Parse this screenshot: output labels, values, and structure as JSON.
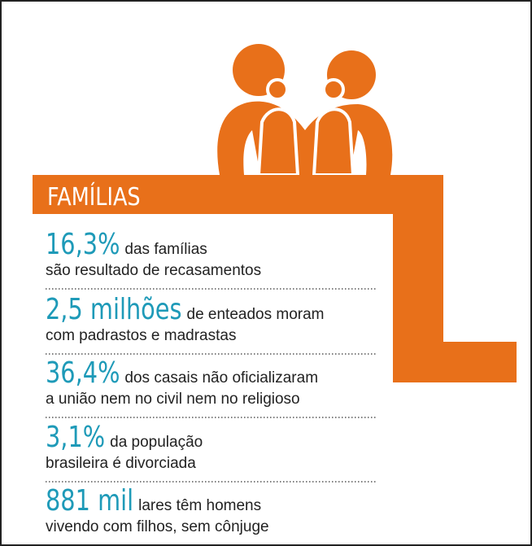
{
  "title": "FAMÍLIAS",
  "items": [
    {
      "highlight": "16,3%",
      "line1": "das famílias",
      "line2": "são resultado de recasamentos"
    },
    {
      "highlight": "2,5 milhões",
      "line1": "de enteados moram",
      "line2": "com padrastos e madrastas"
    },
    {
      "highlight": "36,4%",
      "line1": "dos casais não oficializaram",
      "line2": "a união nem no civil nem no religioso"
    },
    {
      "highlight": "3,1%",
      "line1": "da população",
      "line2": "brasileira é divorciada"
    },
    {
      "highlight": "881 mil",
      "line1": "lares têm homens",
      "line2": "vivendo com filhos, sem cônjuge"
    }
  ]
}
